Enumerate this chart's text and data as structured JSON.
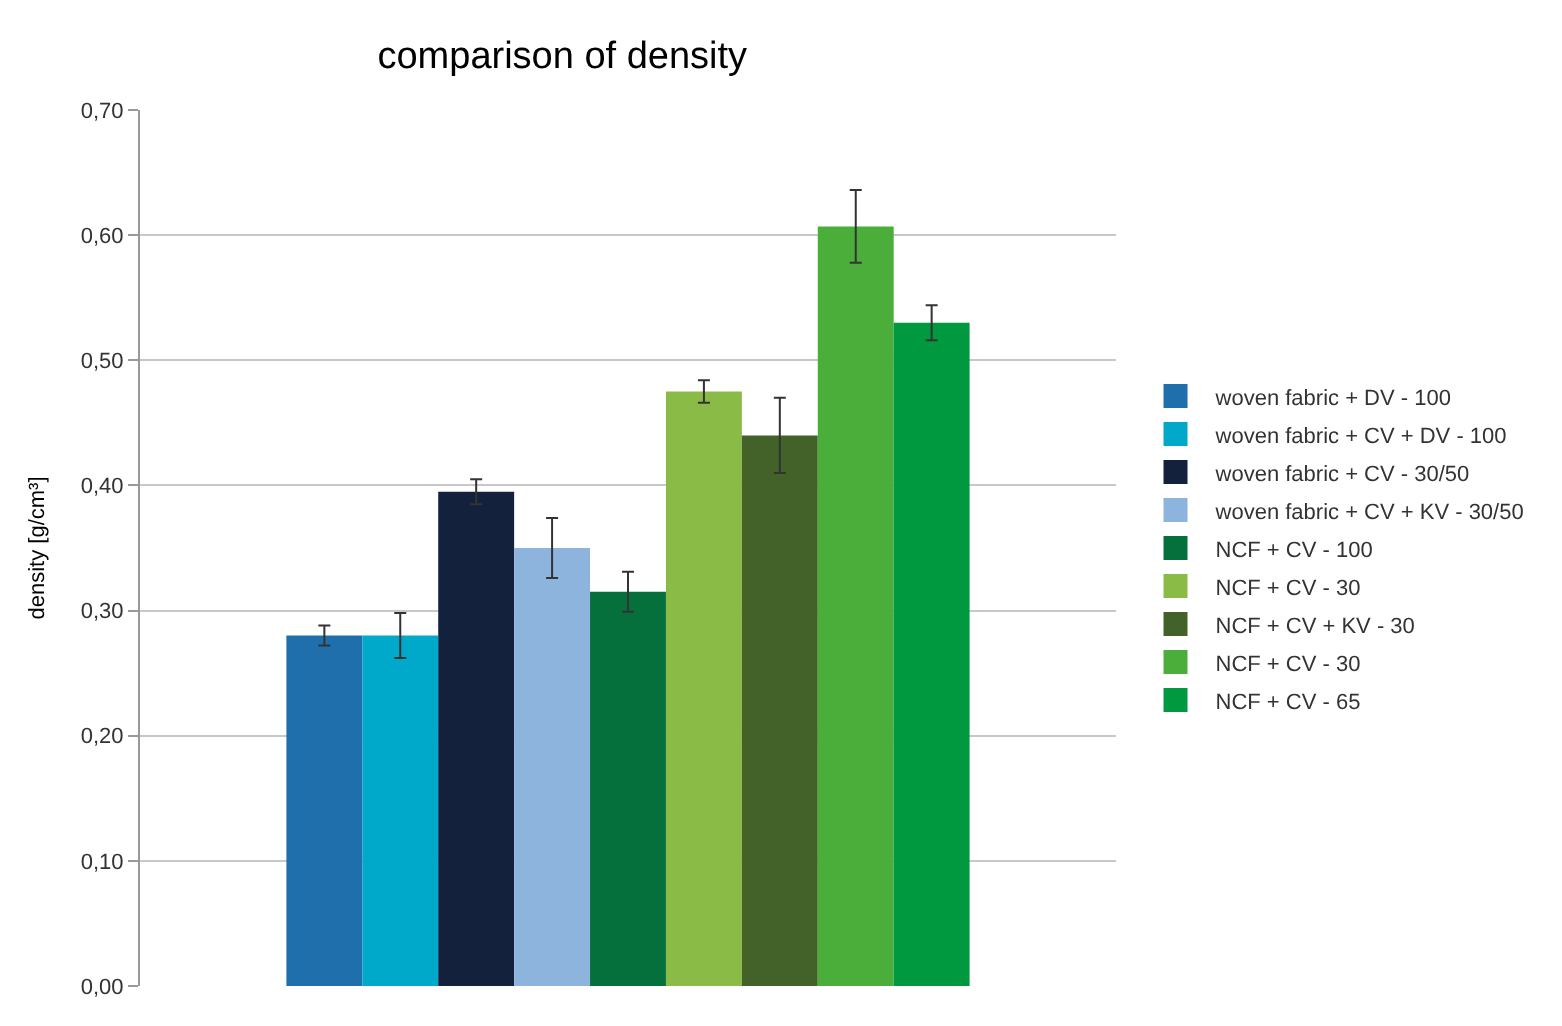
{
  "chart_data": {
    "type": "bar",
    "title": "comparison of density",
    "ylabel": "density [g/cm³]",
    "categories": [
      null
    ],
    "series": [
      {
        "name": "woven fabric + DV - 100",
        "color": "#1f6fad",
        "values": [
          0.28
        ],
        "errors": [
          0.008
        ]
      },
      {
        "name": "woven fabric + CV + DV - 100",
        "color": "#00a9c9",
        "values": [
          0.28
        ],
        "errors": [
          0.018
        ]
      },
      {
        "name": "woven fabric + CV - 30/50",
        "color": "#14213d",
        "values": [
          0.395
        ],
        "errors": [
          0.01
        ]
      },
      {
        "name": "woven fabric + CV + KV - 30/50",
        "color": "#8db4dc",
        "values": [
          0.35
        ],
        "errors": [
          0.024
        ]
      },
      {
        "name": "NCF + CV - 100",
        "color": "#05703c",
        "values": [
          0.315
        ],
        "errors": [
          0.016
        ]
      },
      {
        "name": "NCF + CV - 30",
        "color": "#8bbb47",
        "values": [
          0.475
        ],
        "errors": [
          0.009
        ]
      },
      {
        "name": "NCF + CV + KV - 30",
        "color": "#43622a",
        "values": [
          0.44
        ],
        "errors": [
          0.03
        ]
      },
      {
        "name": "NCF + CV - 30",
        "color": "#4cae3a",
        "values": [
          0.607
        ],
        "errors": [
          0.029
        ]
      },
      {
        "name": "NCF + CV - 65",
        "color": "#009940",
        "values": [
          0.53
        ],
        "errors": [
          0.014
        ]
      }
    ],
    "ylim": [
      0,
      0.7
    ],
    "yticks": [
      {
        "value": 0,
        "label": "0,00"
      },
      {
        "value": 0.1,
        "label": "0,10"
      },
      {
        "value": 0.2,
        "label": "0,20"
      },
      {
        "value": 0.3,
        "label": "0,30"
      },
      {
        "value": 0.4,
        "label": "0,40"
      },
      {
        "value": 0.5,
        "label": "0,50"
      },
      {
        "value": 0.6,
        "label": "0,60"
      },
      {
        "value": 0.7,
        "label": "0,70"
      }
    ],
    "grid": "y",
    "legend": "right"
  }
}
